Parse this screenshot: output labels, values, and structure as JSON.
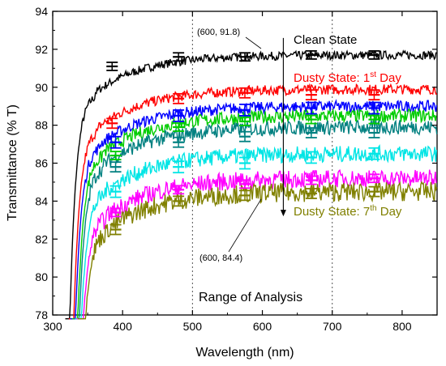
{
  "chart_data": {
    "type": "line",
    "xlabel": "Wavelength (nm)",
    "ylabel": "Transmittance (% T)",
    "xlim": [
      300,
      850
    ],
    "ylim": [
      78,
      94
    ],
    "xticks": [
      300,
      400,
      500,
      600,
      700,
      800
    ],
    "yticks": [
      78,
      80,
      82,
      84,
      86,
      88,
      90,
      92,
      94
    ],
    "grid": false,
    "vlines": [
      500,
      700
    ],
    "series": [
      {
        "color": "#000000",
        "plateau": 91.7,
        "cutoff": 320,
        "errorbars": [
          [
            385,
            91.1
          ],
          [
            480,
            91.6
          ],
          [
            575,
            91.6
          ],
          [
            670,
            91.7
          ],
          [
            760,
            91.7
          ]
        ]
      },
      {
        "color": "#ff0000",
        "plateau": 89.9,
        "cutoff": 325,
        "errorbars": [
          [
            385,
            88.1
          ],
          [
            480,
            89.4
          ],
          [
            575,
            89.7
          ],
          [
            670,
            89.6
          ],
          [
            760,
            89.6
          ]
        ]
      },
      {
        "color": "#0000ff",
        "plateau": 89.0,
        "cutoff": 327,
        "errorbars": [
          [
            390,
            87.1
          ],
          [
            480,
            88.5
          ],
          [
            575,
            88.8
          ],
          [
            670,
            88.9
          ],
          [
            760,
            88.9
          ]
        ]
      },
      {
        "color": "#00cc00",
        "plateau": 88.5,
        "cutoff": 330,
        "errorbars": [
          [
            390,
            86.4
          ],
          [
            480,
            87.9
          ],
          [
            575,
            88.2
          ],
          [
            670,
            88.3
          ],
          [
            760,
            88.3
          ]
        ]
      },
      {
        "color": "#008080",
        "plateau": 87.9,
        "cutoff": 332,
        "errorbars": [
          [
            390,
            85.8
          ],
          [
            480,
            87.1
          ],
          [
            575,
            87.4
          ],
          [
            670,
            87.6
          ],
          [
            760,
            87.6
          ]
        ]
      },
      {
        "color": "#00e5e5",
        "plateau": 86.5,
        "cutoff": 334,
        "errorbars": [
          [
            390,
            84.5
          ],
          [
            480,
            85.8
          ],
          [
            575,
            86.0
          ],
          [
            670,
            86.3
          ],
          [
            760,
            86.5
          ]
        ]
      },
      {
        "color": "#ff00ff",
        "plateau": 85.2,
        "cutoff": 336,
        "errorbars": [
          [
            390,
            83.4
          ],
          [
            480,
            84.6
          ],
          [
            575,
            84.9
          ],
          [
            670,
            85.1
          ],
          [
            760,
            85.2
          ]
        ]
      },
      {
        "color": "#808000",
        "plateau": 84.5,
        "cutoff": 338,
        "errorbars": [
          [
            390,
            82.5
          ],
          [
            480,
            84.0
          ],
          [
            575,
            84.3
          ],
          [
            670,
            84.4
          ],
          [
            760,
            84.5
          ]
        ]
      }
    ],
    "annotations": {
      "clean_point": {
        "label": "(600, 91.8)",
        "x": 600,
        "y": 91.8
      },
      "dusty_point": {
        "label": "(600, 84.4)",
        "x": 600,
        "y": 84.4
      },
      "clean_label": "Clean State",
      "dusty1_label_pre": "Dusty State: 1",
      "dusty1_sup": "st",
      "dusty1_label_post": " Day",
      "dusty7_label_pre": "Dusty State: 7",
      "dusty7_sup": "th",
      "dusty7_label_post": " Day",
      "range_label": "Range of Analysis",
      "arrow": {
        "x": 630,
        "from": 92.6,
        "to": 83.2
      },
      "colors": {
        "clean": "#000000",
        "dusty1": "#ff0000",
        "dusty7": "#808000"
      }
    }
  }
}
